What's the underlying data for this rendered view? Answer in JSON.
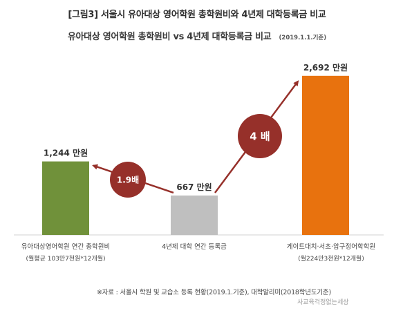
{
  "header": {
    "title": "[그림3] 서울시 유아대상 영어학원 총학원비와 4년제 대학등록금 비교"
  },
  "chart_data": {
    "type": "bar",
    "title": "유아대상 영어학원 총학원비 vs 4년제 대학등록금 비교",
    "subtitle": "(2019.1.1.기준)",
    "categories": [
      "유아대상영어학원 연간 총학원비",
      "4년제 대학 연간 등록금",
      "게이트대치·서초·압구정어학학원"
    ],
    "category_notes": [
      "(월평균 103만7천원*12개월)",
      "",
      "(월224만3천원*12개월)"
    ],
    "values": [
      1244,
      667,
      2692
    ],
    "value_labels": [
      "1,244 만원",
      "667 만원",
      "2,692 만원"
    ],
    "colors": [
      "#70913a",
      "#bfbfbf",
      "#e8720e"
    ],
    "ratio_labels": [
      "1.9배",
      "4 배"
    ],
    "ratio_color": "#96302a",
    "ylim": [
      0,
      2900
    ]
  },
  "source": {
    "note": "※자료 : 서울시 학원 및 교습소 등록 현황(2019.1.기준), 대학알리미(2018학년도기준)"
  },
  "watermark": {
    "text": "사교육걱정없는세상"
  }
}
